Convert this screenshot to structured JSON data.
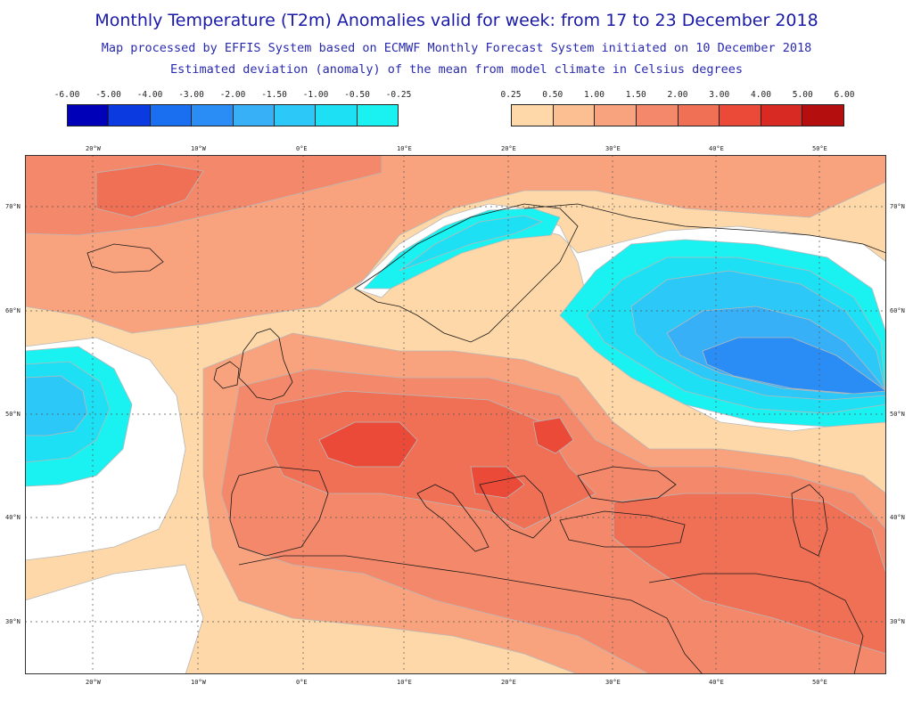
{
  "title": "Monthly Temperature (T2m) Anomalies valid for week: from 17 to 23 December 2018",
  "subtitle_1": "Map processed by EFFIS System based on ECMWF Monthly Forecast System initiated on 10 December 2018",
  "subtitle_2": "Estimated deviation (anomaly) of the mean from model climate in Celsius degrees",
  "legend_cold": {
    "ticks": [
      "-6.00",
      "-5.00",
      "-4.00",
      "-3.00",
      "-2.00",
      "-1.50",
      "-1.00",
      "-0.50",
      "-0.25"
    ],
    "colors": [
      "#0000b8",
      "#0a3ae0",
      "#1a6ef0",
      "#2a8cf5",
      "#38b0f7",
      "#2cc8f7",
      "#1ee0f5",
      "#1af2f2"
    ]
  },
  "legend_warm": {
    "ticks": [
      "0.25",
      "0.50",
      "1.00",
      "1.50",
      "2.00",
      "3.00",
      "4.00",
      "5.00",
      "6.00"
    ],
    "colors": [
      "#fed8a8",
      "#fbbf92",
      "#f8a27e",
      "#f4886a",
      "#f07056",
      "#ec4a38",
      "#d82a22",
      "#b40e0e"
    ]
  },
  "map": {
    "lon_labels": [
      "20°W",
      "10°W",
      "0°E",
      "10°E",
      "20°E",
      "30°E",
      "40°E",
      "50°E"
    ],
    "lat_labels": [
      "70°N",
      "60°N",
      "50°N",
      "40°N",
      "30°N"
    ],
    "colors": {
      "neutral": "#ffffff",
      "warm_025": "#fed8a8",
      "warm_05": "#fbbf92",
      "warm_1": "#f8a27e",
      "warm_15": "#f4886a",
      "warm_2": "#f07056",
      "warm_3": "#ec4a38",
      "cold_025": "#1af2f2",
      "cold_05": "#1ee0f5",
      "cold_1": "#2cc8f7",
      "cold_15": "#38b0f7",
      "cold_2": "#2a8cf5",
      "cold_3": "#1a6ef0",
      "coast": "#1a1a1a",
      "grid": "#555555"
    }
  }
}
